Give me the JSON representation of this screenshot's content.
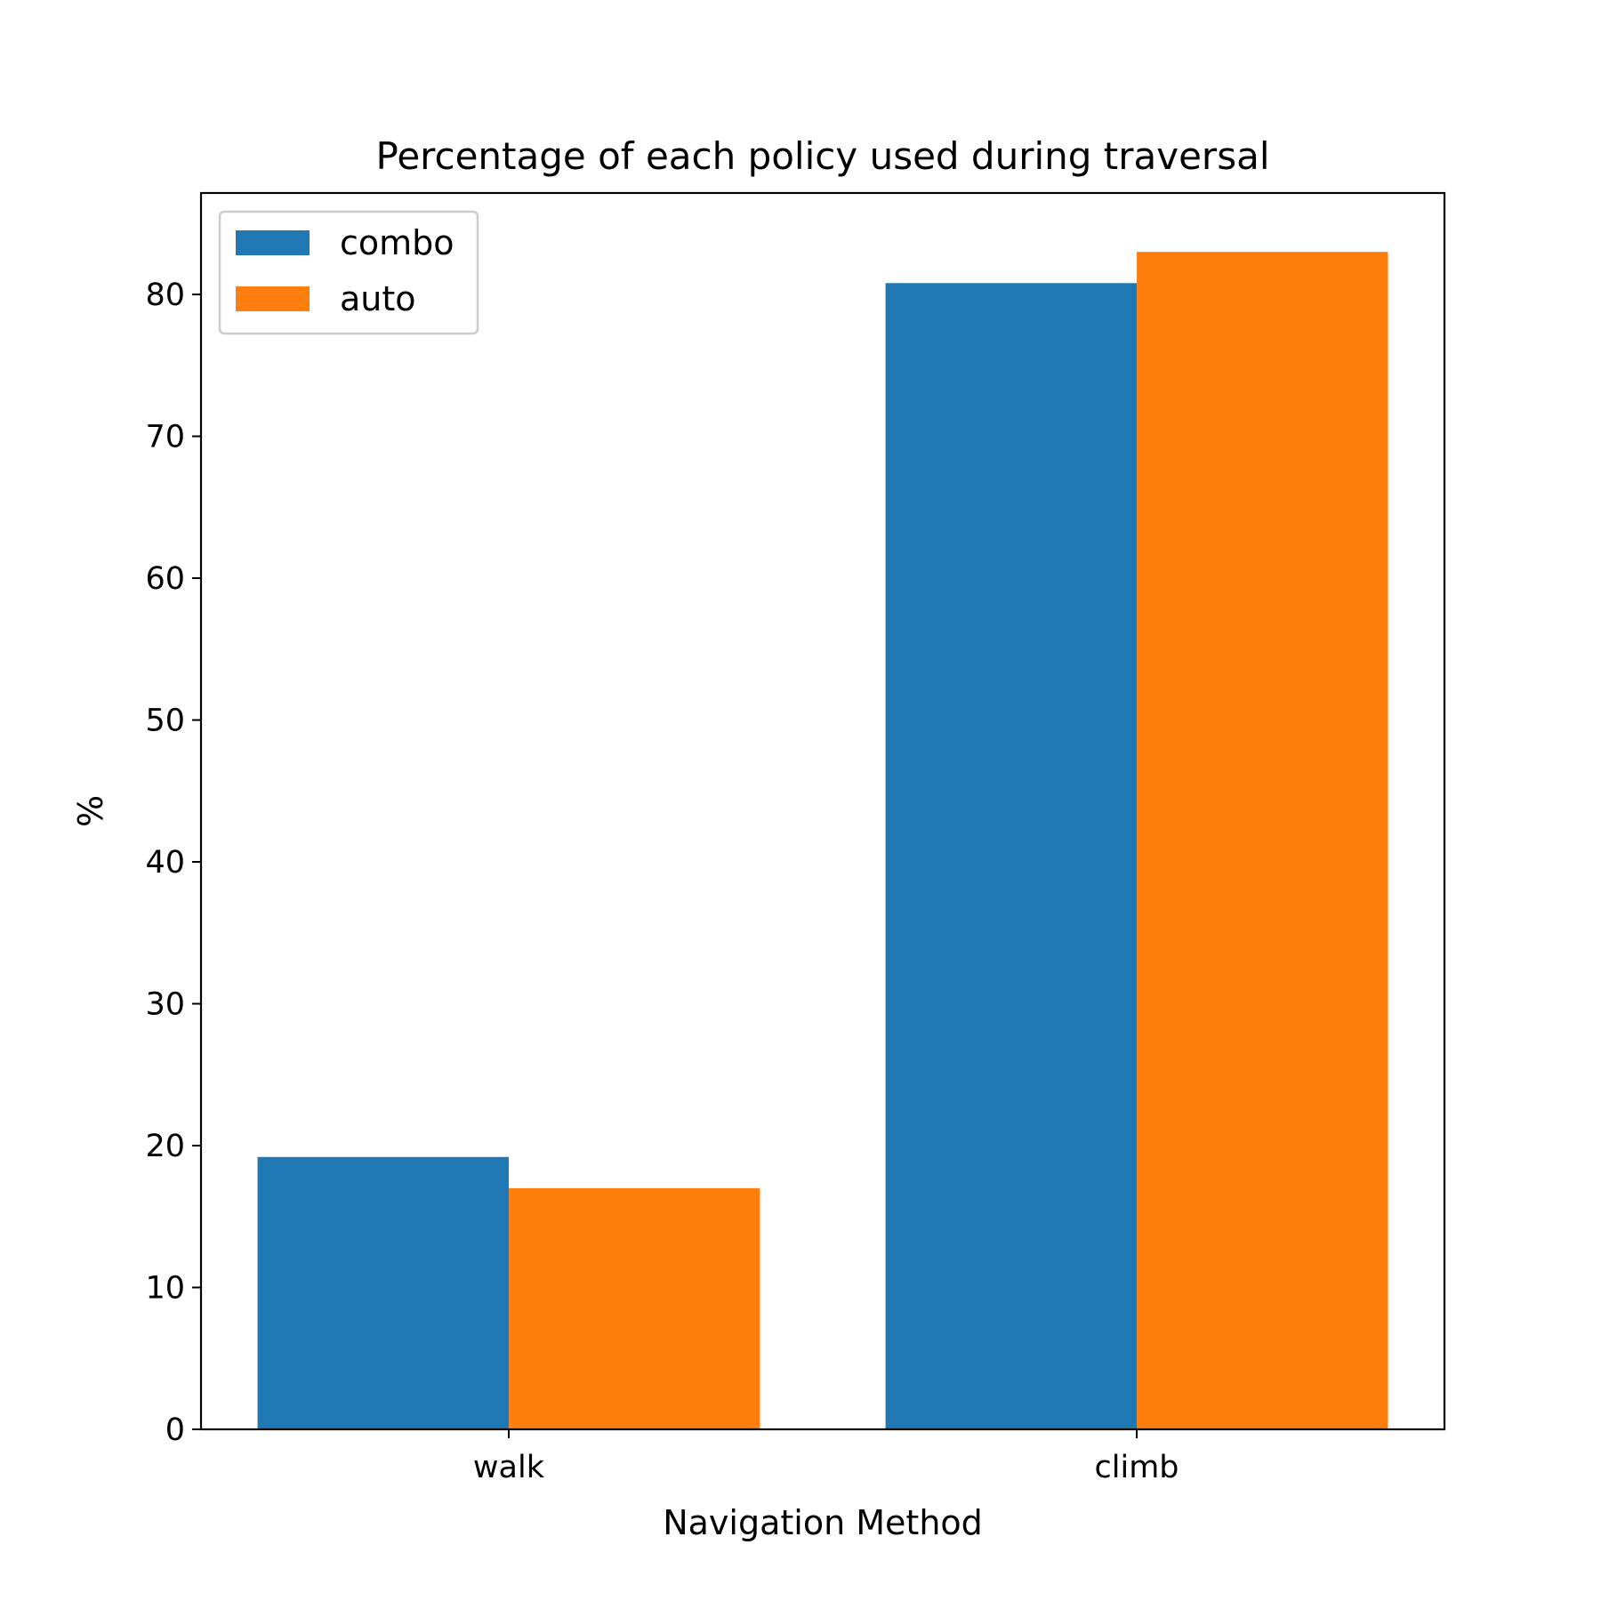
{
  "chart_data": {
    "type": "bar",
    "title": "Percentage of each policy used during traversal",
    "xlabel": "Navigation Method",
    "ylabel": "%",
    "categories": [
      "walk",
      "climb"
    ],
    "series": [
      {
        "name": "combo",
        "color": "#1f77b4",
        "values": [
          19.2,
          80.8
        ]
      },
      {
        "name": "auto",
        "color": "#ff7f0e",
        "values": [
          17.0,
          83.0
        ]
      }
    ],
    "ylim": [
      0,
      87.15
    ],
    "yticks": [
      "0",
      "10",
      "20",
      "30",
      "40",
      "50",
      "60",
      "70",
      "80"
    ],
    "grid": false,
    "legend_position": "top-left"
  }
}
